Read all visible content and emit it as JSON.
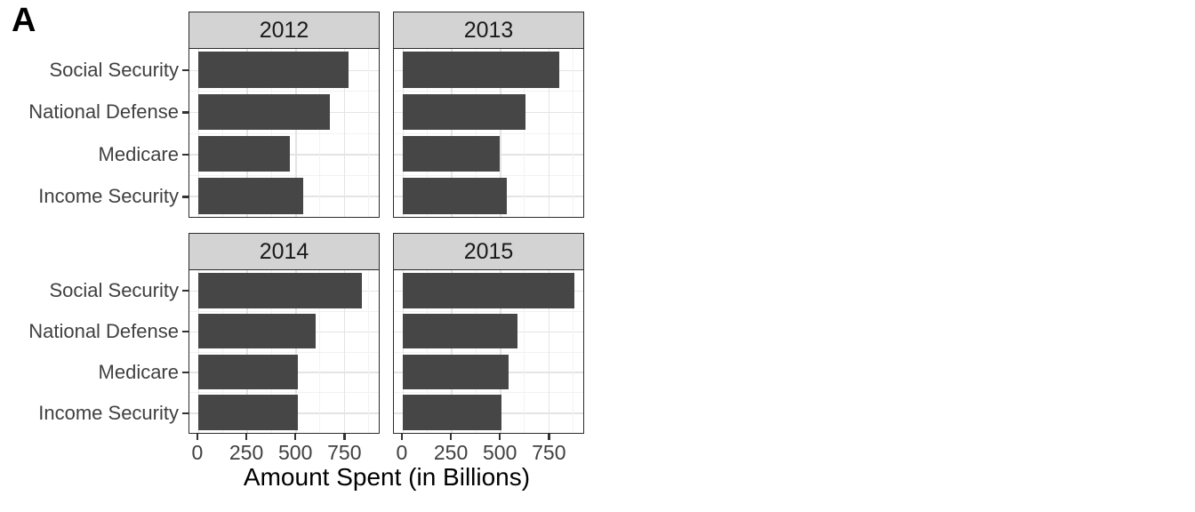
{
  "figure": {
    "panel_label": "A"
  },
  "chart_data": {
    "type": "bar",
    "orientation": "horizontal",
    "title": "",
    "xlabel": "Amount Spent (in Billions)",
    "ylabel": "",
    "facet_by": "year",
    "categories": [
      "Social Security",
      "National Defense",
      "Medicare",
      "Income Security"
    ],
    "facets": [
      {
        "label": "2012",
        "values": [
          773,
          678,
          472,
          541
        ]
      },
      {
        "label": "2013",
        "values": [
          808,
          633,
          498,
          536
        ]
      },
      {
        "label": "2014",
        "values": [
          845,
          603,
          512,
          513
        ]
      },
      {
        "label": "2015",
        "values": [
          882,
          589,
          546,
          508
        ]
      }
    ],
    "x_ticks": [
      0,
      250,
      500,
      750
    ],
    "x_minor_ticks": [
      125,
      375,
      625,
      875
    ],
    "xlim": [
      -45,
      930
    ],
    "grid": true,
    "legend": "none",
    "colors": {
      "bar": "#464646",
      "strip_bg": "#d3d3d3",
      "panel_border": "#2b2b2b",
      "grid_major": "#e4e4e4",
      "grid_minor": "#f2f2f2",
      "axis_text": "#404040",
      "strip_text": "#1a1a1a",
      "axis_title": "#000000"
    }
  }
}
